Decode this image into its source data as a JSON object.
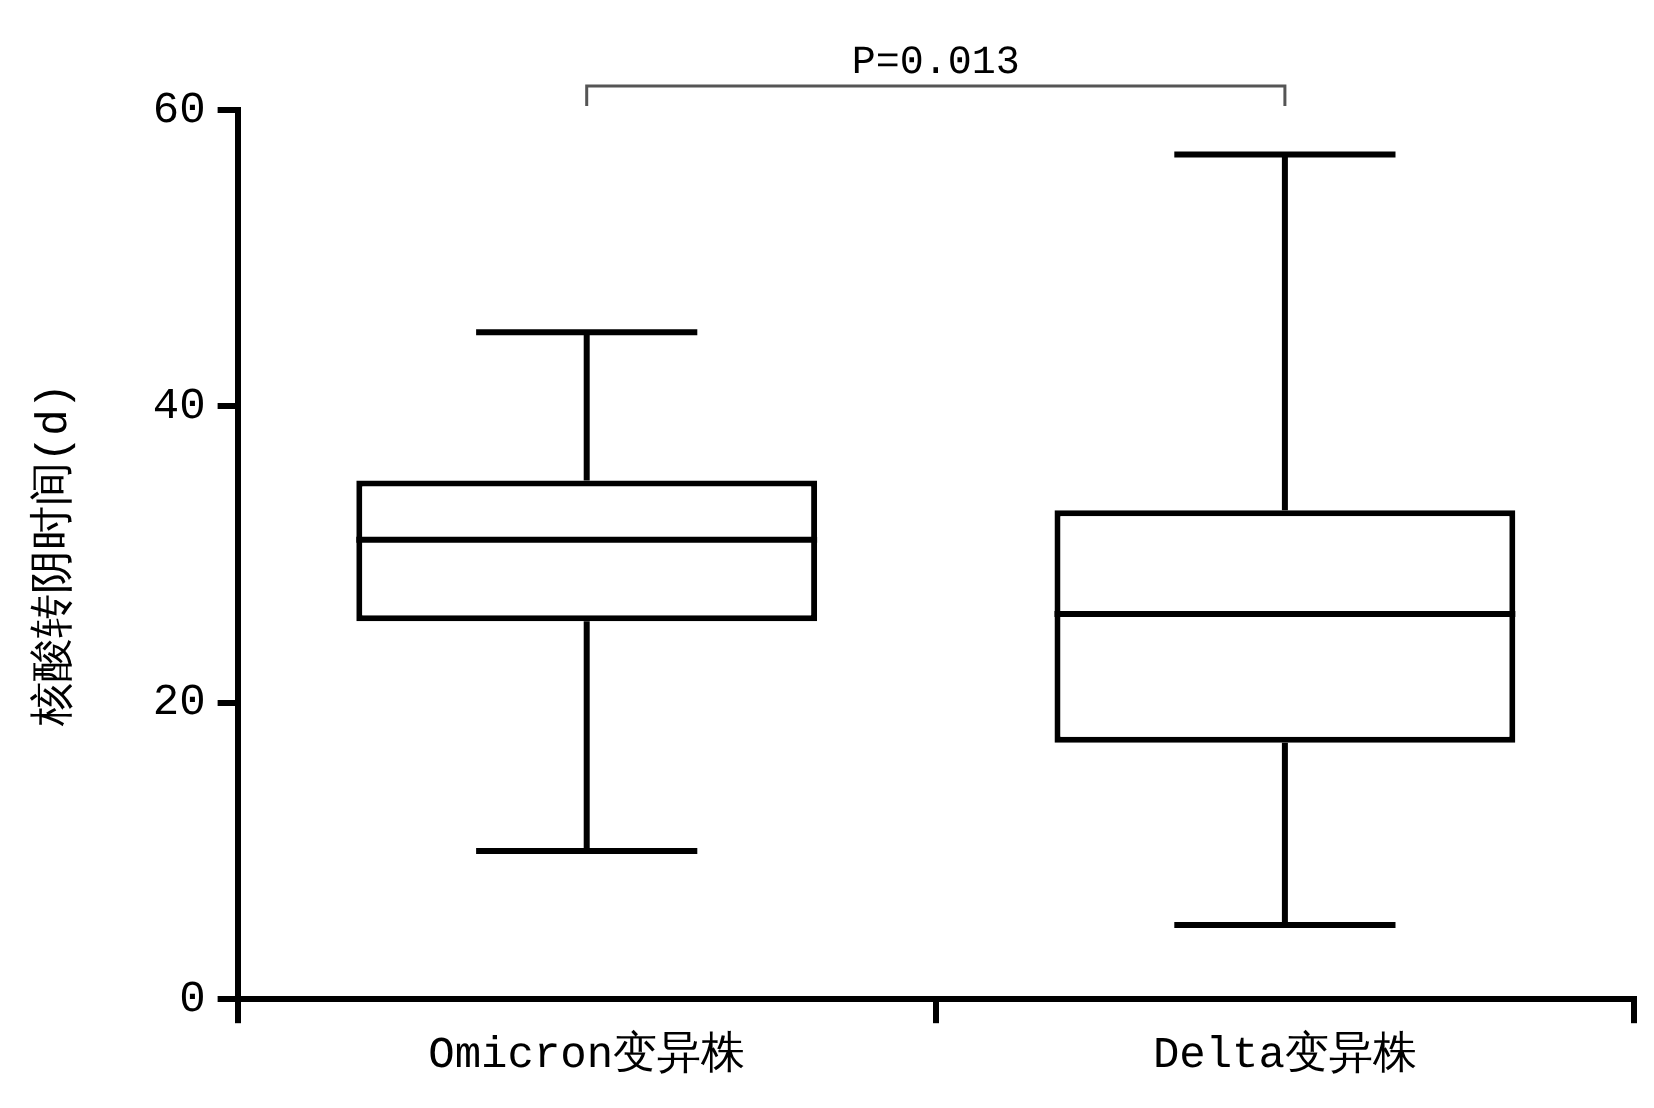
{
  "chart_data": {
    "type": "box",
    "ylabel": "核酸转阴时间(d)",
    "categories": [
      "Omicron变异株",
      "Delta变异株"
    ],
    "color": "#000000",
    "boxes": [
      {
        "low": 10,
        "q1": 25.5,
        "median": 31,
        "q3": 35,
        "high": 45
      },
      {
        "low": 5,
        "q1": 17.3,
        "median": 26,
        "q3": 33,
        "high": 57
      }
    ],
    "ylim": [
      0,
      60
    ],
    "yticks": [
      0,
      20,
      40,
      60
    ],
    "annotations": [
      "P=0.013"
    ]
  }
}
